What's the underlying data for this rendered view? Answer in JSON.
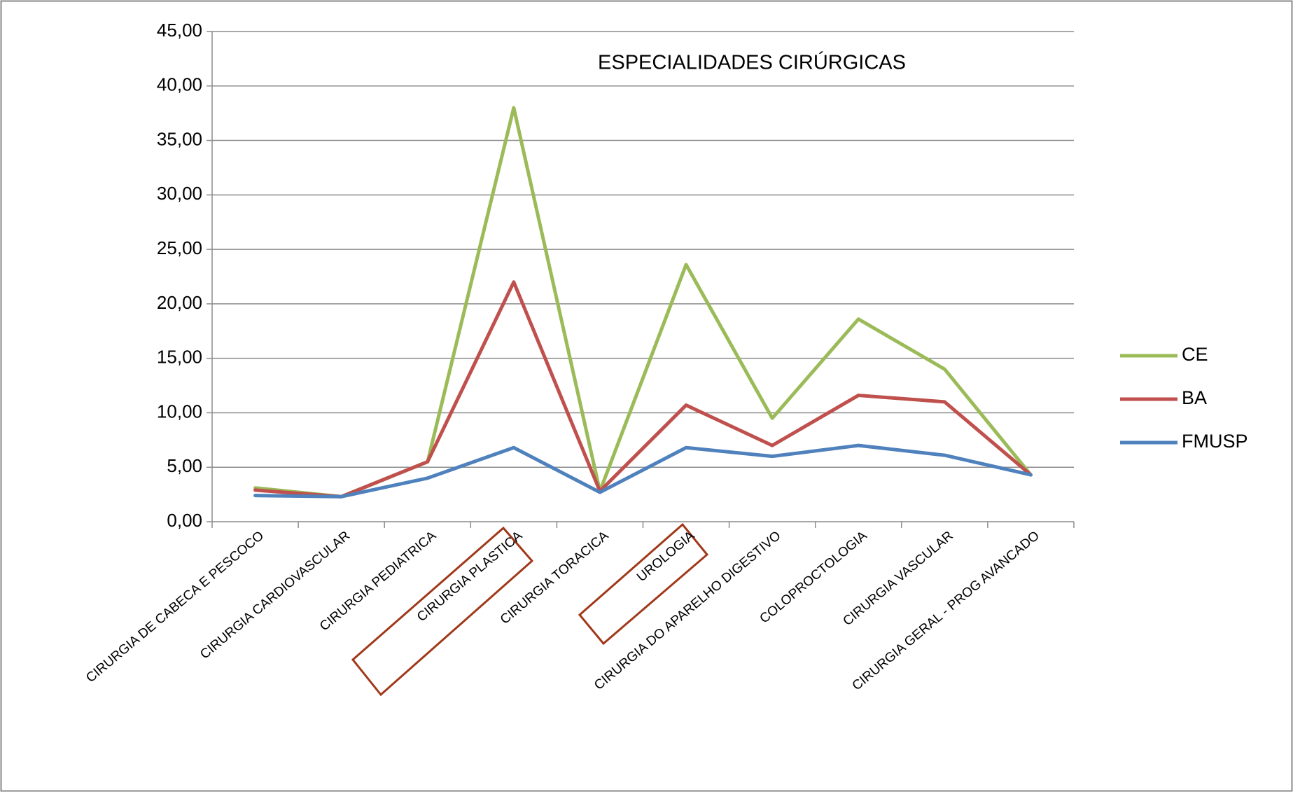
{
  "chart_data": {
    "type": "line",
    "title": "ESPECIALIDADES CIRÚRGICAS",
    "categories": [
      "CIRURGIA DE CABECA E PESCOCO",
      "CIRURGIA CARDIOVASCULAR",
      "CIRURGIA PEDIATRICA",
      "CIRURGIA PLASTICA",
      "CIRURGIA TORACICA",
      "UROLOGIA",
      "CIRURGIA DO APARELHO DIGESTIVO",
      "COLOPROCTOLOGIA",
      "CIRURGIA VASCULAR",
      "CIRURGIA GERAL - PROG AVANCADO"
    ],
    "series": [
      {
        "name": "CE",
        "color": "#9bbb59",
        "values": [
          3.1,
          2.3,
          5.5,
          38.0,
          2.8,
          23.6,
          9.5,
          18.6,
          14.0,
          4.3
        ]
      },
      {
        "name": "BA",
        "color": "#c0504d",
        "values": [
          2.9,
          2.3,
          5.5,
          22.0,
          2.8,
          10.7,
          7.0,
          11.6,
          11.0,
          4.3
        ]
      },
      {
        "name": "FMUSP",
        "color": "#4f81bd",
        "values": [
          2.4,
          2.3,
          4.0,
          6.8,
          2.7,
          6.8,
          6.0,
          7.0,
          6.1,
          4.3
        ]
      }
    ],
    "ylim": [
      0,
      45
    ],
    "yticks": [
      {
        "value": 0,
        "label": "0,00"
      },
      {
        "value": 5,
        "label": "5,00"
      },
      {
        "value": 10,
        "label": "10,00"
      },
      {
        "value": 15,
        "label": "15,00"
      },
      {
        "value": 20,
        "label": "20,00"
      },
      {
        "value": 25,
        "label": "25,00"
      },
      {
        "value": 30,
        "label": "30,00"
      },
      {
        "value": 35,
        "label": "35,00"
      },
      {
        "value": 40,
        "label": "40,00"
      },
      {
        "value": 45,
        "label": "45,00"
      }
    ],
    "grid": true,
    "legend": "right"
  }
}
